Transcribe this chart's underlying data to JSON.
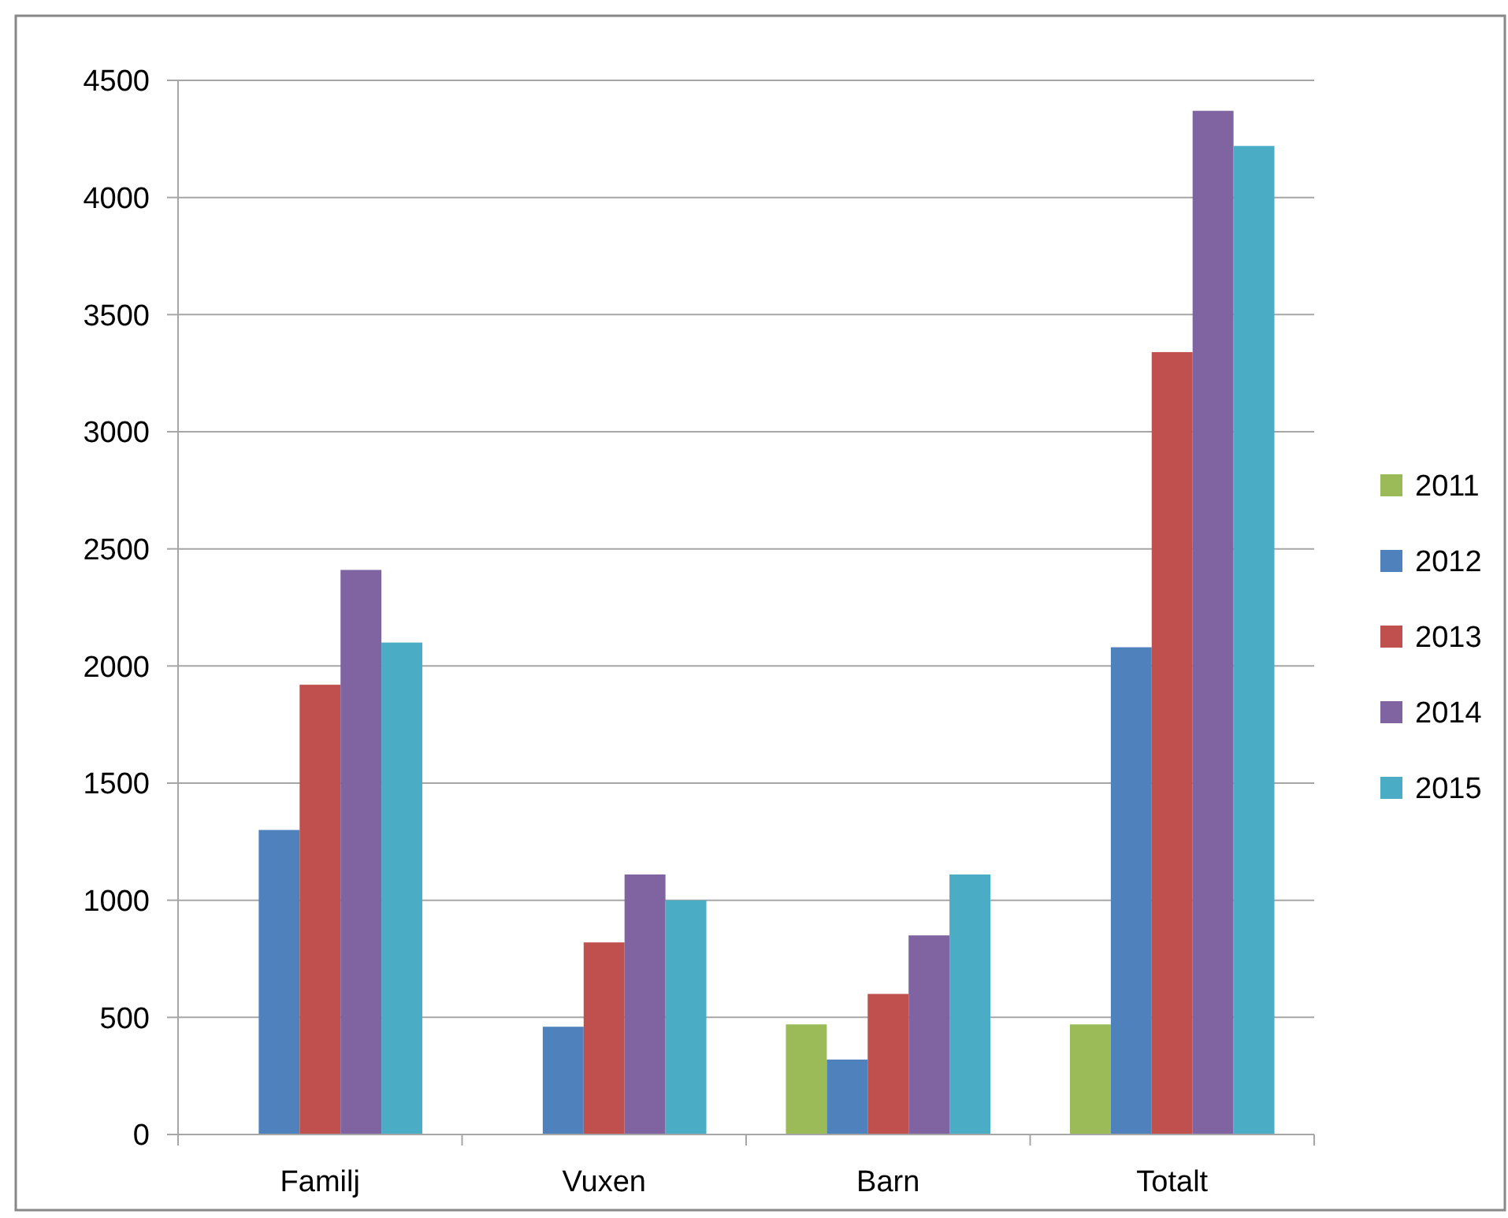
{
  "chart_data": {
    "type": "bar",
    "categories": [
      "Familj",
      "Vuxen",
      "Barn",
      "Totalt"
    ],
    "series": [
      {
        "name": "2011",
        "color": "#9bbb59",
        "values": [
          null,
          null,
          470,
          470
        ]
      },
      {
        "name": "2012",
        "color": "#4f81bd",
        "values": [
          1300,
          460,
          320,
          2080
        ]
      },
      {
        "name": "2013",
        "color": "#c0504d",
        "values": [
          1920,
          820,
          600,
          3340
        ]
      },
      {
        "name": "2014",
        "color": "#8064a2",
        "values": [
          2410,
          1110,
          850,
          4370
        ]
      },
      {
        "name": "2015",
        "color": "#4bacc6",
        "values": [
          2100,
          1000,
          1110,
          4220
        ]
      }
    ],
    "ylim": [
      0,
      4500
    ],
    "yticks": [
      0,
      500,
      1000,
      1500,
      2000,
      2500,
      3000,
      3500,
      4000,
      4500
    ],
    "grid": "y",
    "legend": "right"
  }
}
